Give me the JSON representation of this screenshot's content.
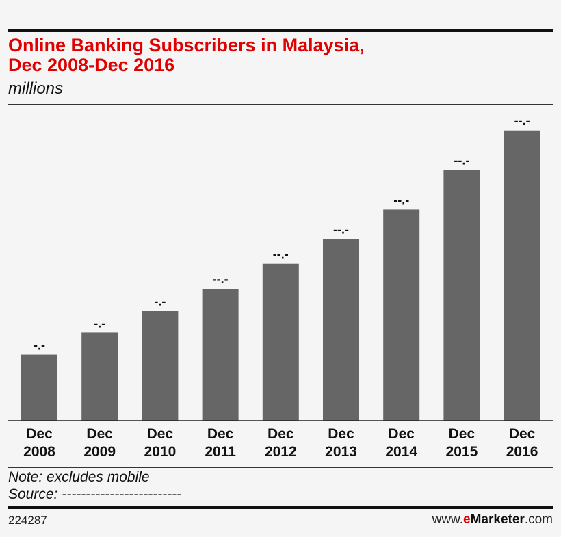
{
  "header": {
    "title_line1": "Online Banking Subscribers in Malaysia,",
    "title_line2": "Dec 2008-Dec 2016",
    "subtitle": "millions",
    "title_color": "#e00000"
  },
  "footer": {
    "note": "Note: excludes mobile",
    "source": "Source: -------------------------",
    "chart_id": "224287",
    "brand_prefix": "www.",
    "brand_e": "e",
    "brand_name": "Marketer",
    "brand_suffix": ".com"
  },
  "chart_data": {
    "type": "bar",
    "categories": [
      [
        "Dec",
        "2008"
      ],
      [
        "Dec",
        "2009"
      ],
      [
        "Dec",
        "2010"
      ],
      [
        "Dec",
        "2011"
      ],
      [
        "Dec",
        "2012"
      ],
      [
        "Dec",
        "2013"
      ],
      [
        "Dec",
        "2014"
      ],
      [
        "Dec",
        "2015"
      ],
      [
        "Dec",
        "2016"
      ]
    ],
    "values": [
      4.5,
      6.0,
      7.5,
      9.0,
      10.7,
      12.4,
      14.4,
      17.1,
      19.8
    ],
    "data_labels": [
      "-.-",
      "-.-",
      "-.-",
      "--.-",
      "--.-",
      "--.-",
      "--.-",
      "--.-",
      "--.-"
    ],
    "ylim": [
      0,
      21
    ],
    "bar_color": "#666666",
    "grid": false,
    "title": "",
    "xlabel": "",
    "ylabel": ""
  }
}
